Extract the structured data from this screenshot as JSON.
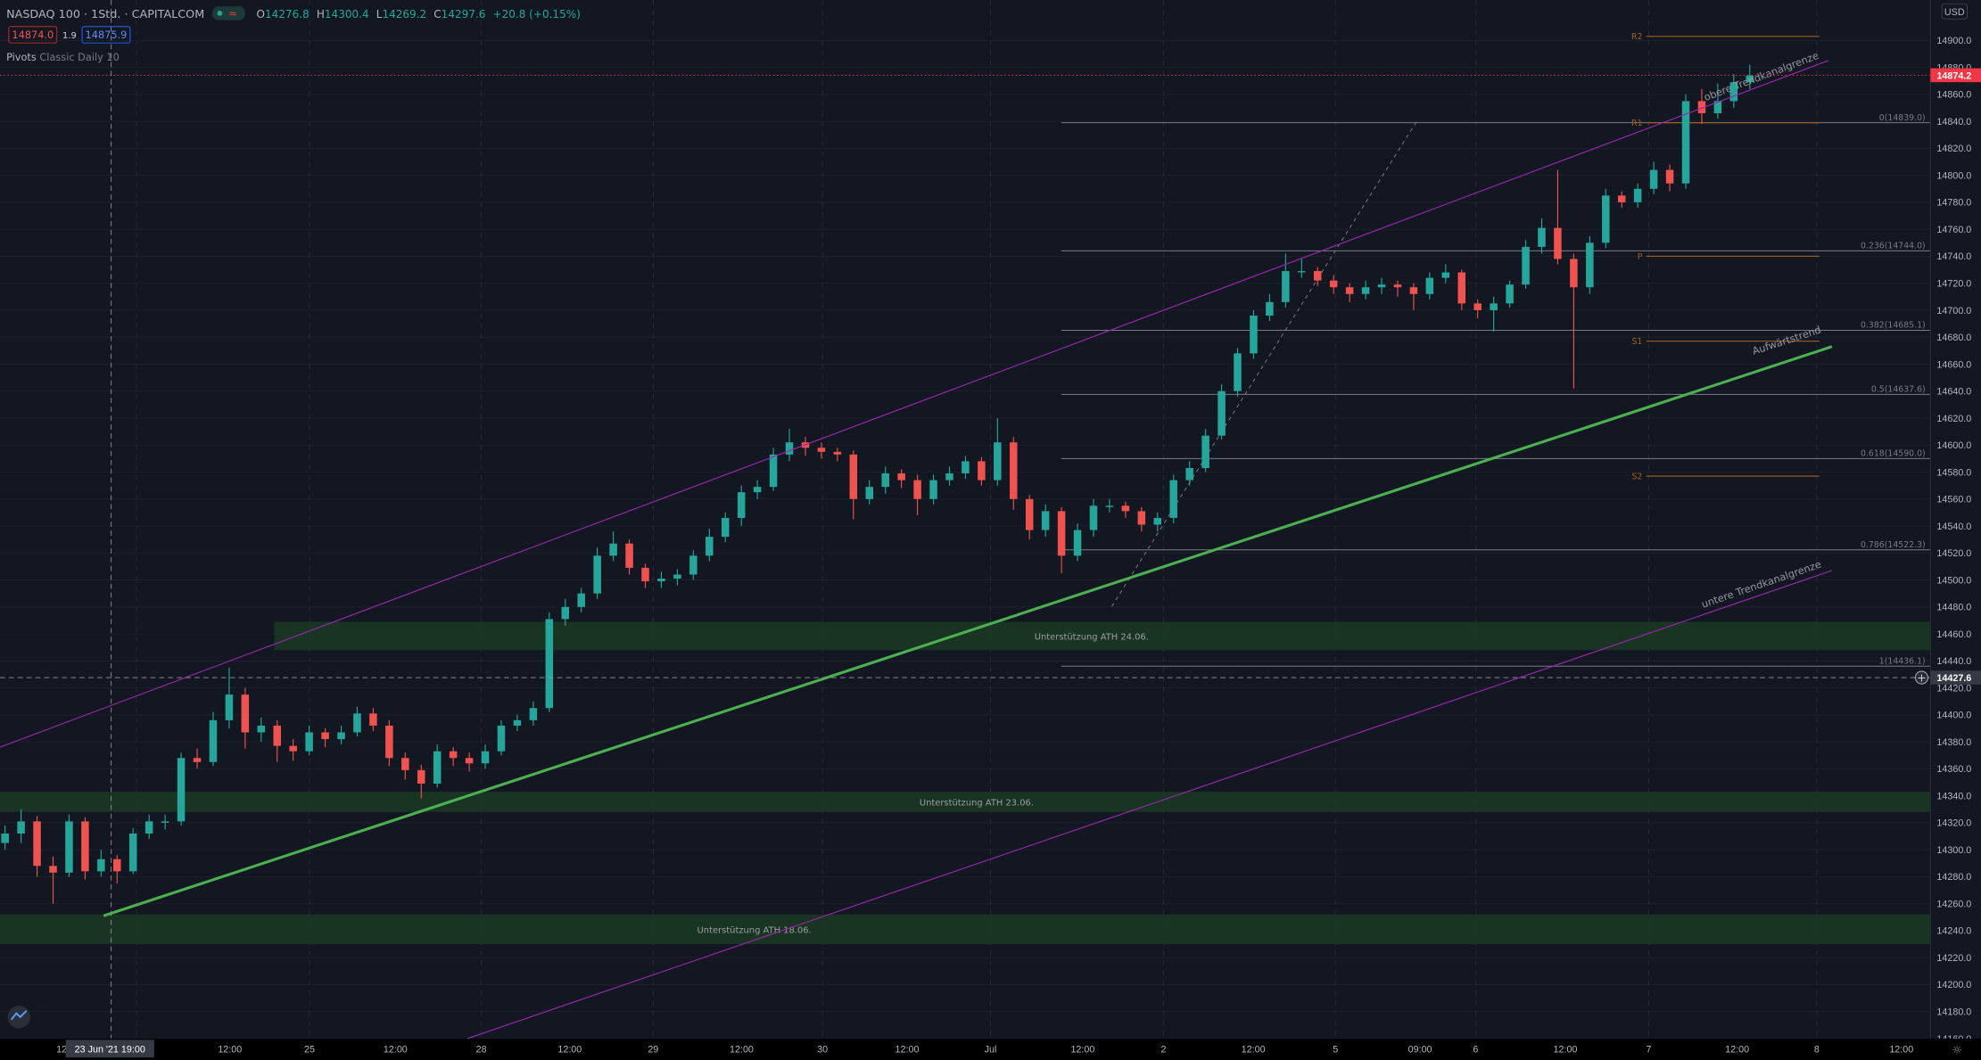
{
  "header": {
    "symbol": "NASDAQ 100 · 1Std. · CAPITALCOM",
    "ohlc": {
      "o_label": "O",
      "o": "14276.8",
      "h_label": "H",
      "h": "14300.4",
      "l_label": "L",
      "l": "14269.2",
      "c_label": "C",
      "c": "14297.6",
      "change": "+20.8 (+0.15%)"
    },
    "bid": "14874.0",
    "spread": "1.9",
    "ask": "14875.9",
    "indicator": {
      "name": "Pivots",
      "params": "Classic Daily 10"
    }
  },
  "price_axis": {
    "currency": "USD",
    "ticks": [
      "14900.0",
      "14880.0",
      "14860.0",
      "14840.0",
      "14820.0",
      "14800.0",
      "14780.0",
      "14760.0",
      "14740.0",
      "14720.0",
      "14700.0",
      "14680.0",
      "14660.0",
      "14640.0",
      "14620.0",
      "14600.0",
      "14580.0",
      "14560.0",
      "14540.0",
      "14520.0",
      "14500.0",
      "14480.0",
      "14460.0",
      "14440.0",
      "14420.0",
      "14400.0",
      "14380.0",
      "14360.0",
      "14340.0",
      "14320.0",
      "14300.0",
      "14280.0",
      "14260.0",
      "14240.0",
      "14220.0",
      "14200.0",
      "14180.0",
      "14160.0"
    ],
    "last_price": "14874.2",
    "crosshair_price": "14427.6"
  },
  "time_axis": {
    "ticks": [
      "12:0",
      "12:00",
      "25",
      "12:00",
      "28",
      "12:00",
      "29",
      "12:00",
      "30",
      "12:00",
      "Jul",
      "12:00",
      "2",
      "12:00",
      "5",
      "09:00",
      "6",
      "12:00",
      "7",
      "12:00",
      "8",
      "12:00"
    ],
    "crosshair_time": "23 Jun '21   19:00"
  },
  "colors": {
    "up": "#26a69a",
    "down": "#ef5350",
    "background": "#131722",
    "trend": "#4caf50",
    "channel": "#9c27b0",
    "zone": "#1b3a22",
    "last_price": "#f23645",
    "pivot": "#a0601a"
  },
  "chart_data": {
    "type": "candlestick",
    "candles": [
      [
        14305,
        14318,
        14300,
        14312
      ],
      [
        14312,
        14330,
        14305,
        14321
      ],
      [
        14321,
        14325,
        14280,
        14288
      ],
      [
        14288,
        14295,
        14260,
        14283
      ],
      [
        14283,
        14326,
        14280,
        14321
      ],
      [
        14321,
        14324,
        14278,
        14284
      ],
      [
        14284,
        14300,
        14280,
        14293
      ],
      [
        14293,
        14296,
        14275,
        14284
      ],
      [
        14284,
        14316,
        14282,
        14312
      ],
      [
        14312,
        14326,
        14308,
        14321
      ],
      [
        14321,
        14326,
        14315,
        14321
      ],
      [
        14321,
        14372,
        14318,
        14368
      ],
      [
        14368,
        14375,
        14360,
        14365
      ],
      [
        14365,
        14402,
        14362,
        14396
      ],
      [
        14396,
        14435,
        14390,
        14415
      ],
      [
        14415,
        14420,
        14375,
        14387
      ],
      [
        14387,
        14398,
        14380,
        14392
      ],
      [
        14392,
        14396,
        14365,
        14377
      ],
      [
        14377,
        14382,
        14366,
        14373
      ],
      [
        14373,
        14392,
        14370,
        14387
      ],
      [
        14387,
        14390,
        14376,
        14382
      ],
      [
        14382,
        14392,
        14378,
        14387
      ],
      [
        14387,
        14406,
        14384,
        14401
      ],
      [
        14401,
        14405,
        14388,
        14392
      ],
      [
        14392,
        14396,
        14362,
        14368
      ],
      [
        14368,
        14372,
        14352,
        14359
      ],
      [
        14359,
        14363,
        14338,
        14349
      ],
      [
        14349,
        14378,
        14346,
        14373
      ],
      [
        14373,
        14376,
        14362,
        14368
      ],
      [
        14368,
        14372,
        14358,
        14364
      ],
      [
        14364,
        14378,
        14360,
        14373
      ],
      [
        14373,
        14396,
        14370,
        14392
      ],
      [
        14392,
        14400,
        14388,
        14396
      ],
      [
        14396,
        14410,
        14392,
        14405
      ],
      [
        14405,
        14476,
        14402,
        14471
      ],
      [
        14471,
        14486,
        14466,
        14480
      ],
      [
        14480,
        14494,
        14476,
        14490
      ],
      [
        14490,
        14524,
        14486,
        14518
      ],
      [
        14518,
        14536,
        14514,
        14527
      ],
      [
        14527,
        14530,
        14504,
        14509
      ],
      [
        14509,
        14512,
        14494,
        14499
      ],
      [
        14499,
        14506,
        14494,
        14501
      ],
      [
        14501,
        14508,
        14496,
        14504
      ],
      [
        14504,
        14522,
        14500,
        14518
      ],
      [
        14518,
        14538,
        14514,
        14532
      ],
      [
        14532,
        14550,
        14528,
        14546
      ],
      [
        14546,
        14570,
        14540,
        14565
      ],
      [
        14565,
        14574,
        14560,
        14569
      ],
      [
        14569,
        14598,
        14566,
        14593
      ],
      [
        14593,
        14612,
        14588,
        14602
      ],
      [
        14602,
        14606,
        14592,
        14598
      ],
      [
        14598,
        14602,
        14590,
        14595
      ],
      [
        14595,
        14598,
        14588,
        14593
      ],
      [
        14593,
        14596,
        14545,
        14560
      ],
      [
        14560,
        14574,
        14556,
        14569
      ],
      [
        14569,
        14584,
        14564,
        14579
      ],
      [
        14579,
        14582,
        14568,
        14574
      ],
      [
        14574,
        14578,
        14548,
        14560
      ],
      [
        14560,
        14578,
        14556,
        14574
      ],
      [
        14574,
        14584,
        14570,
        14579
      ],
      [
        14579,
        14592,
        14575,
        14588
      ],
      [
        14588,
        14591,
        14570,
        14574
      ],
      [
        14574,
        14620,
        14570,
        14602
      ],
      [
        14602,
        14606,
        14552,
        14560
      ],
      [
        14560,
        14563,
        14530,
        14537
      ],
      [
        14537,
        14556,
        14532,
        14551
      ],
      [
        14551,
        14554,
        14505,
        14518
      ],
      [
        14518,
        14542,
        14514,
        14537
      ],
      [
        14537,
        14560,
        14532,
        14555
      ],
      [
        14555,
        14560,
        14550,
        14555
      ],
      [
        14555,
        14558,
        14546,
        14551
      ],
      [
        14551,
        14554,
        14536,
        14541
      ],
      [
        14541,
        14550,
        14536,
        14546
      ],
      [
        14546,
        14578,
        14542,
        14574
      ],
      [
        14574,
        14588,
        14570,
        14583
      ],
      [
        14583,
        14612,
        14580,
        14607
      ],
      [
        14607,
        14645,
        14604,
        14640
      ],
      [
        14640,
        14672,
        14636,
        14668
      ],
      [
        14668,
        14700,
        14664,
        14696
      ],
      [
        14696,
        14712,
        14692,
        14706
      ],
      [
        14706,
        14742,
        14702,
        14729
      ],
      [
        14729,
        14738,
        14724,
        14729
      ],
      [
        14729,
        14732,
        14718,
        14722
      ],
      [
        14722,
        14726,
        14712,
        14717
      ],
      [
        14717,
        14720,
        14706,
        14712
      ],
      [
        14712,
        14722,
        14708,
        14717
      ],
      [
        14717,
        14724,
        14712,
        14719
      ],
      [
        14719,
        14722,
        14710,
        14717
      ],
      [
        14717,
        14720,
        14700,
        14712
      ],
      [
        14712,
        14728,
        14708,
        14724
      ],
      [
        14724,
        14734,
        14720,
        14728
      ],
      [
        14728,
        14730,
        14700,
        14705
      ],
      [
        14705,
        14708,
        14694,
        14700
      ],
      [
        14700,
        14710,
        14684,
        14705
      ],
      [
        14705,
        14722,
        14702,
        14719
      ],
      [
        14719,
        14752,
        14716,
        14747
      ],
      [
        14747,
        14768,
        14742,
        14761
      ],
      [
        14761,
        14804,
        14734,
        14738
      ],
      [
        14738,
        14742,
        14642,
        14717
      ],
      [
        14717,
        14755,
        14712,
        14750
      ],
      [
        14750,
        14790,
        14746,
        14785
      ],
      [
        14785,
        14788,
        14776,
        14780
      ],
      [
        14780,
        14794,
        14776,
        14790
      ],
      [
        14790,
        14810,
        14786,
        14804
      ],
      [
        14804,
        14808,
        14788,
        14794
      ],
      [
        14794,
        14860,
        14790,
        14855
      ],
      [
        14855,
        14864,
        14838,
        14846
      ],
      [
        14846,
        14868,
        14842,
        14855
      ],
      [
        14855,
        14875,
        14850,
        14869
      ],
      [
        14869,
        14882,
        14864,
        14874
      ]
    ],
    "ylim": [
      14150,
      14930
    ],
    "fibonacci": [
      {
        "level": "0",
        "price": 14839.0,
        "label": "0(14839.0)"
      },
      {
        "level": "0.236",
        "price": 14744.0,
        "label": "0.236(14744.0)"
      },
      {
        "level": "0.382",
        "price": 14685.1,
        "label": "0.382(14685.1)"
      },
      {
        "level": "0.5",
        "price": 14637.6,
        "label": "0.5(14637.6)"
      },
      {
        "level": "0.618",
        "price": 14590.0,
        "label": "0.618(14590.0)"
      },
      {
        "level": "0.786",
        "price": 14522.3,
        "label": "0.786(14522.3)"
      },
      {
        "level": "1",
        "price": 14436.1,
        "label": "1(14436.1)"
      }
    ],
    "pivots": [
      {
        "label": "R2",
        "price": 14903
      },
      {
        "label": "R1",
        "price": 14839
      },
      {
        "label": "P",
        "price": 14740
      },
      {
        "label": "S1",
        "price": 14677
      },
      {
        "label": "S2",
        "price": 14577
      }
    ],
    "zones": [
      {
        "label": "Unterstützung ATH 24.06.",
        "top": 14469,
        "bottom": 14448
      },
      {
        "label": "Unterstützung ATH 23.06.",
        "top": 14343,
        "bottom": 14328
      },
      {
        "label": "Unterstützung ATH 18.06.",
        "top": 14252,
        "bottom": 14230
      }
    ],
    "trendlines": [
      {
        "label": "Aufwärtstrend",
        "start": 14251,
        "end": 14673
      },
      {
        "label": "obere Trendkanalgrenze",
        "start": 14376,
        "end": 14885
      },
      {
        "label": "untere Trendkanalgrenze",
        "start": 14160,
        "end": 14507
      }
    ]
  }
}
